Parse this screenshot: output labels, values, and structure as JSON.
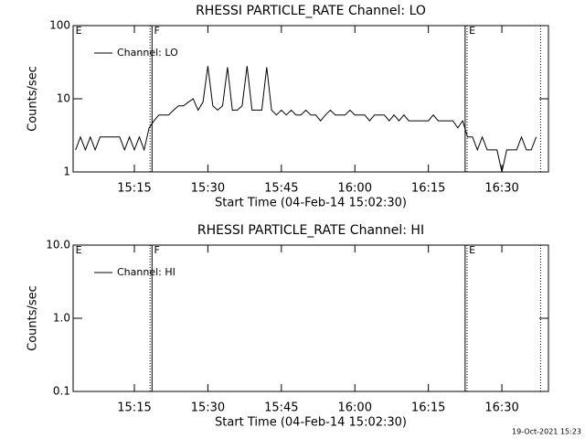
{
  "chart_data": [
    {
      "type": "line",
      "title": "RHESSI PARTICLE_RATE Channel: LO",
      "xlabel": "Start Time (04-Feb-14 15:02:30)",
      "ylabel": "Counts/sec",
      "log_y": true,
      "ylim": [
        1,
        100
      ],
      "yticks": [
        1,
        10,
        100
      ],
      "xlim": [
        902.5,
        999.5
      ],
      "xticks": [
        {
          "value": 915,
          "label": "15:15"
        },
        {
          "value": 930,
          "label": "15:30"
        },
        {
          "value": 945,
          "label": "15:45"
        },
        {
          "value": 960,
          "label": "16:00"
        },
        {
          "value": 975,
          "label": "16:15"
        },
        {
          "value": 990,
          "label": "16:30"
        }
      ],
      "legend": "upper left",
      "x": [
        903,
        904,
        905,
        906,
        907,
        908,
        909,
        910,
        911,
        912,
        913,
        914,
        915,
        916,
        917,
        918,
        919,
        920,
        921,
        922,
        923,
        924,
        925,
        926,
        927,
        928,
        929,
        930,
        931,
        932,
        933,
        934,
        935,
        936,
        937,
        938,
        939,
        940,
        941,
        942,
        943,
        944,
        945,
        946,
        947,
        948,
        949,
        950,
        951,
        952,
        953,
        954,
        955,
        956,
        957,
        958,
        959,
        960,
        961,
        962,
        963,
        964,
        965,
        966,
        967,
        968,
        969,
        970,
        971,
        972,
        973,
        974,
        975,
        976,
        977,
        978,
        979,
        980,
        981,
        982,
        983,
        984,
        985,
        986,
        987,
        988,
        989,
        990,
        991,
        992,
        993,
        994,
        995,
        996,
        997
      ],
      "series": [
        {
          "name": "Channel: LO",
          "color": "#000000",
          "values": [
            2,
            3,
            2,
            3,
            2,
            3,
            3,
            3,
            3,
            3,
            2,
            3,
            2,
            3,
            2,
            4,
            5,
            6,
            6,
            6,
            7,
            8,
            8,
            9,
            10,
            7,
            9,
            28,
            8,
            7,
            8,
            27,
            7,
            7,
            8,
            28,
            7,
            7,
            7,
            27,
            7,
            6,
            7,
            6,
            7,
            6,
            6,
            7,
            6,
            6,
            5,
            6,
            7,
            6,
            6,
            6,
            7,
            6,
            6,
            6,
            5,
            6,
            6,
            6,
            5,
            6,
            5,
            6,
            5,
            5,
            5,
            5,
            5,
            6,
            5,
            5,
            5,
            5,
            4,
            5,
            3,
            3,
            2,
            3,
            2,
            2,
            2,
            1,
            2,
            2,
            2,
            3,
            2,
            2,
            3
          ]
        }
      ],
      "vlines": [
        {
          "x": 918.2,
          "style": "dotted"
        },
        {
          "x": 918.6,
          "style": "solid"
        },
        {
          "x": 982.5,
          "style": "solid"
        },
        {
          "x": 982.9,
          "style": "dotted"
        },
        {
          "x": 997.9,
          "style": "dotted"
        }
      ],
      "annotations": [
        {
          "text": "E",
          "x": 903
        },
        {
          "text": "F",
          "x": 919
        },
        {
          "text": "E",
          "x": 983.3
        }
      ]
    },
    {
      "type": "line",
      "title": "RHESSI PARTICLE_RATE Channel: HI",
      "xlabel": "Start Time (04-Feb-14 15:02:30)",
      "ylabel": "Counts/sec",
      "log_y": true,
      "ylim": [
        0.1,
        10
      ],
      "yticks": [
        0.1,
        {
          "value": 1,
          "label": "1.0"
        },
        {
          "value": 10,
          "label": "10.0"
        }
      ],
      "xlim": [
        902.5,
        999.5
      ],
      "xticks": [
        {
          "value": 915,
          "label": "15:15"
        },
        {
          "value": 930,
          "label": "15:30"
        },
        {
          "value": 945,
          "label": "15:45"
        },
        {
          "value": 960,
          "label": "16:00"
        },
        {
          "value": 975,
          "label": "16:15"
        },
        {
          "value": 990,
          "label": "16:30"
        }
      ],
      "legend": "upper left",
      "x": [],
      "series": [
        {
          "name": "Channel: HI",
          "color": "#000000",
          "values": []
        }
      ],
      "vlines": [
        {
          "x": 918.2,
          "style": "dotted"
        },
        {
          "x": 918.6,
          "style": "solid"
        },
        {
          "x": 982.5,
          "style": "solid"
        },
        {
          "x": 982.9,
          "style": "dotted"
        },
        {
          "x": 997.9,
          "style": "dotted"
        }
      ],
      "annotations": [
        {
          "text": "E",
          "x": 903
        },
        {
          "text": "F",
          "x": 919
        },
        {
          "text": "E",
          "x": 983.3
        }
      ]
    }
  ],
  "footer": "19-Oct-2021 15:23"
}
